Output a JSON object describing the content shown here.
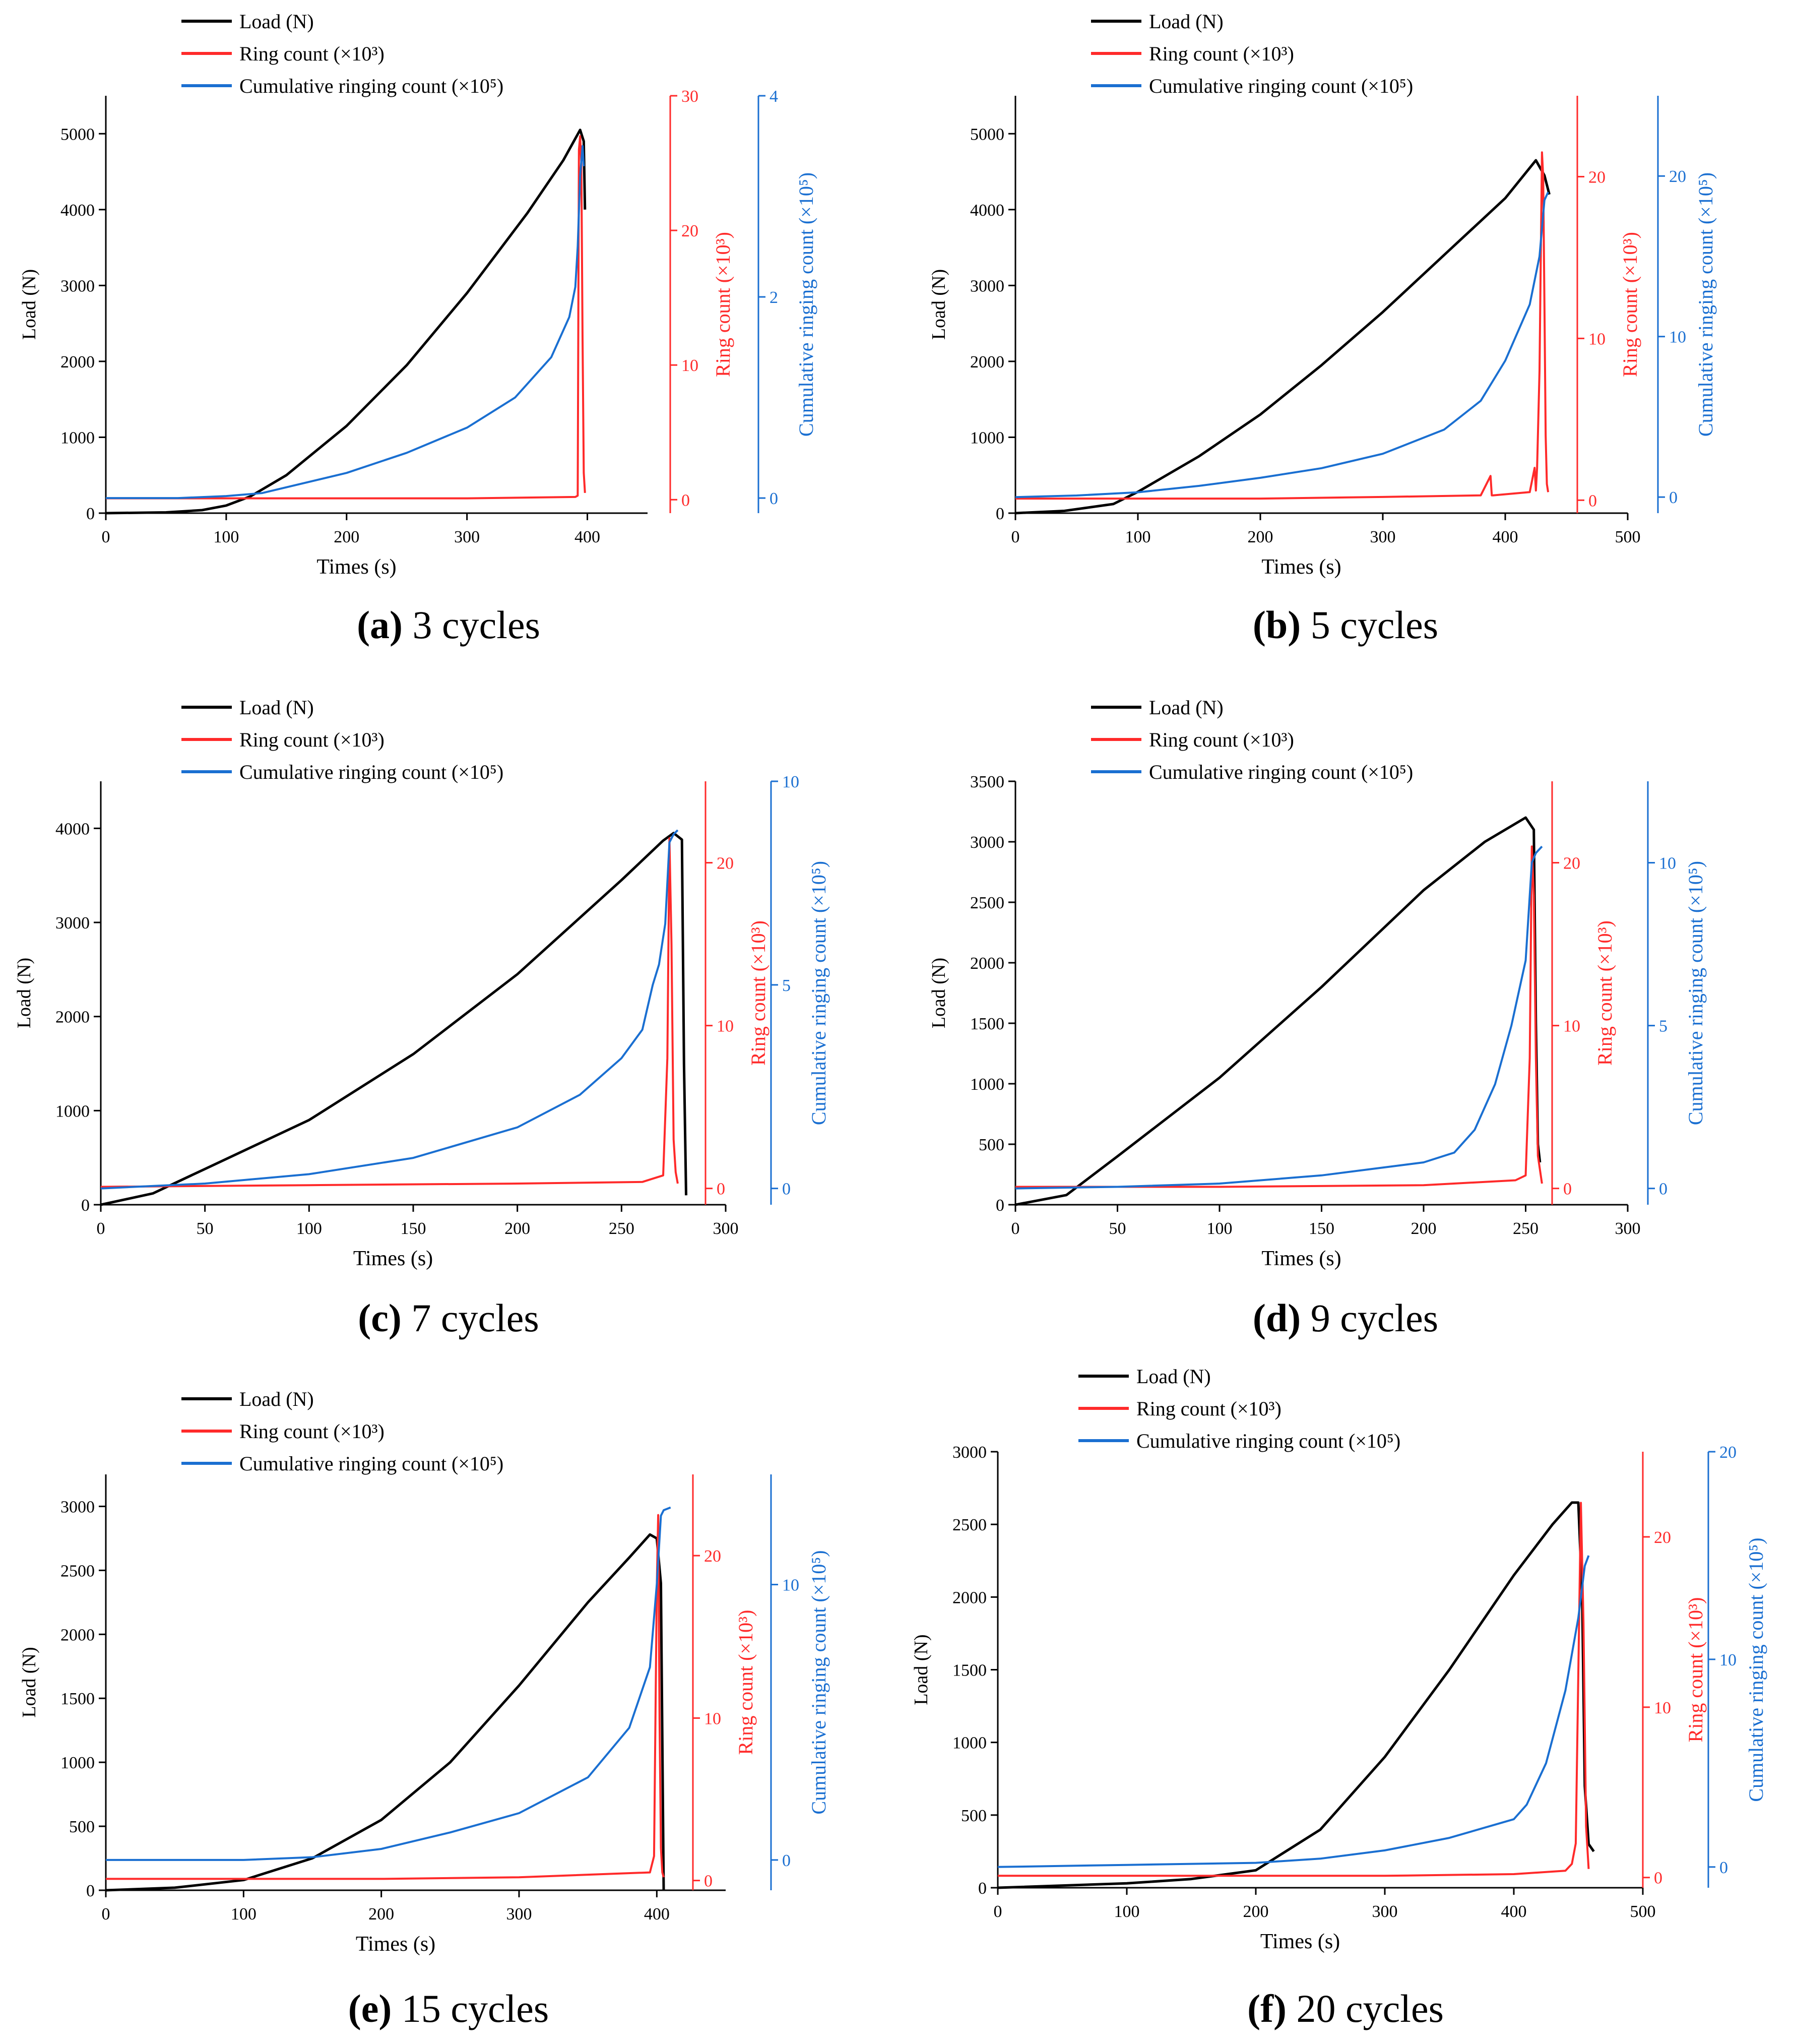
{
  "colors": {
    "load": "#000000",
    "ring": "#ff2a2a",
    "cumulative": "#1a6fd1",
    "axis": "#000000"
  },
  "chart_data": [
    {
      "type": "line",
      "title": "3 cycles",
      "letter": "a",
      "xlabel": "Times (s)",
      "xlim": [
        0,
        450
      ],
      "xticks": [
        0,
        100,
        200,
        300,
        400
      ],
      "ylabel_left": "Load (N)",
      "ylim_left": [
        0,
        5500
      ],
      "yticks_left": [
        0,
        1000,
        2000,
        3000,
        4000,
        5000
      ],
      "ylabel_ring": "Ring count (×10³)",
      "ylim_ring": [
        -1,
        30
      ],
      "yticks_ring": [
        0,
        10,
        20,
        30
      ],
      "ylabel_cum": "Cumulative ringing count (×10⁵)",
      "ylim_cum": [
        -0.15,
        4
      ],
      "yticks_cum": [
        0,
        2,
        4
      ],
      "legend": [
        "Load (N)",
        "Ring count (×10³)",
        "Cumulative ringing count (×10⁵)"
      ],
      "legend_position": "top",
      "series": [
        {
          "name": "Load (N)",
          "x": [
            0,
            50,
            80,
            100,
            120,
            150,
            200,
            250,
            300,
            350,
            380,
            394,
            397,
            398
          ],
          "y": [
            0,
            10,
            40,
            100,
            220,
            500,
            1150,
            1950,
            2900,
            3950,
            4650,
            5050,
            4900,
            4000
          ]
        },
        {
          "name": "Ring count (×10³)",
          "x": [
            0,
            100,
            200,
            300,
            390,
            392,
            393,
            394,
            395,
            396,
            397,
            398
          ],
          "y": [
            0.1,
            0.1,
            0.1,
            0.1,
            0.2,
            0.3,
            26,
            27,
            25,
            12,
            2,
            0.5
          ]
        },
        {
          "name": "Cumulative ringing count (×10⁵)",
          "x": [
            0,
            60,
            100,
            130,
            200,
            250,
            300,
            340,
            370,
            385,
            390,
            392,
            394,
            396,
            397
          ],
          "y": [
            0,
            0,
            0.02,
            0.05,
            0.25,
            0.45,
            0.7,
            1.0,
            1.4,
            1.8,
            2.1,
            2.5,
            3.2,
            3.5,
            3.3
          ]
        }
      ]
    },
    {
      "type": "line",
      "title": "5 cycles",
      "letter": "b",
      "xlabel": "Times (s)",
      "xlim": [
        0,
        500
      ],
      "xticks": [
        0,
        100,
        200,
        300,
        400,
        500
      ],
      "ylabel_left": "Load (N)",
      "ylim_left": [
        0,
        5500
      ],
      "yticks_left": [
        0,
        1000,
        2000,
        3000,
        4000,
        5000
      ],
      "ylabel_ring": "Ring count (×10³)",
      "ylim_ring": [
        -0.8,
        25
      ],
      "yticks_ring": [
        0,
        10,
        20
      ],
      "ylabel_cum": "Cumulative ringing count (×10⁵)",
      "ylim_cum": [
        -1,
        25
      ],
      "yticks_cum": [
        0,
        10,
        20
      ],
      "legend": [
        "Load (N)",
        "Ring count (×10³)",
        "Cumulative ringing count (×10⁵)"
      ],
      "legend_position": "top",
      "series": [
        {
          "name": "Load (N)",
          "x": [
            0,
            40,
            80,
            100,
            150,
            200,
            250,
            300,
            350,
            400,
            425,
            432,
            436
          ],
          "y": [
            0,
            30,
            120,
            280,
            750,
            1300,
            1950,
            2650,
            3400,
            4150,
            4650,
            4450,
            4200
          ]
        },
        {
          "name": "Ring count (×10³)",
          "x": [
            0,
            100,
            200,
            300,
            380,
            388,
            389,
            390,
            420,
            424,
            425,
            426,
            428,
            429,
            430,
            431,
            432,
            433,
            434,
            435
          ],
          "y": [
            0.1,
            0.1,
            0.1,
            0.2,
            0.3,
            1.5,
            0.3,
            0.3,
            0.5,
            2.0,
            0.6,
            2.0,
            8,
            15,
            21.5,
            20,
            12,
            4,
            1,
            0.5
          ]
        },
        {
          "name": "Cumulative ringing count (×10⁵)",
          "x": [
            0,
            50,
            100,
            150,
            200,
            250,
            300,
            350,
            380,
            400,
            420,
            428,
            432,
            435
          ],
          "y": [
            0,
            0.1,
            0.3,
            0.7,
            1.2,
            1.8,
            2.7,
            4.2,
            6.0,
            8.5,
            12,
            15,
            18.5,
            19
          ]
        }
      ]
    },
    {
      "type": "line",
      "title": "7 cycles",
      "letter": "c",
      "xlabel": "Times (s)",
      "xlim": [
        0,
        300
      ],
      "xticks": [
        0,
        50,
        100,
        150,
        200,
        250,
        300
      ],
      "ylabel_left": "Load (N)",
      "ylim_left": [
        0,
        4500
      ],
      "yticks_left": [
        0,
        1000,
        2000,
        3000,
        4000
      ],
      "ylabel_ring": "Ring count (×10³)",
      "ylim_ring": [
        -1,
        25
      ],
      "yticks_ring": [
        0,
        10,
        20
      ],
      "ylabel_cum": "Cumulative ringing count (×10⁵)",
      "ylim_cum": [
        -0.4,
        10
      ],
      "yticks_cum": [
        0,
        5,
        10
      ],
      "legend": [
        "Load (N)",
        "Ring count (×10³)",
        "Cumulative ringing count (×10⁵)"
      ],
      "legend_position": "top",
      "series": [
        {
          "name": "Load (N)",
          "x": [
            0,
            25,
            50,
            100,
            150,
            200,
            250,
            270,
            275,
            279,
            280,
            281
          ],
          "y": [
            0,
            120,
            380,
            900,
            1600,
            2450,
            3450,
            3870,
            3950,
            3880,
            1500,
            100
          ]
        },
        {
          "name": "Ring count (×10³)",
          "x": [
            0,
            100,
            200,
            260,
            265,
            270,
            272,
            273,
            274,
            275,
            276,
            277
          ],
          "y": [
            0.1,
            0.2,
            0.3,
            0.4,
            0.6,
            0.8,
            8,
            21.5,
            15,
            3,
            1,
            0.3
          ]
        },
        {
          "name": "Cumulative ringing count (×10⁵)",
          "x": [
            0,
            50,
            100,
            150,
            200,
            230,
            250,
            260,
            265,
            268,
            271,
            273,
            275,
            277
          ],
          "y": [
            0,
            0.12,
            0.35,
            0.75,
            1.5,
            2.3,
            3.2,
            3.9,
            5,
            5.5,
            6.5,
            8.5,
            8.7,
            8.8
          ]
        }
      ]
    },
    {
      "type": "line",
      "title": "9 cycles",
      "letter": "d",
      "xlabel": "Times (s)",
      "xlim": [
        0,
        300
      ],
      "xticks": [
        0,
        50,
        100,
        150,
        200,
        250,
        300
      ],
      "ylabel_left": "Load (N)",
      "ylim_left": [
        0,
        3500
      ],
      "yticks_left": [
        0,
        500,
        1000,
        1500,
        2000,
        2500,
        3000,
        3500
      ],
      "ylabel_ring": "Ring count (×10³)",
      "ylim_ring": [
        -1,
        25
      ],
      "yticks_ring": [
        0,
        10,
        20
      ],
      "ylabel_cum": "Cumulative ringing count (×10⁵)",
      "ylim_cum": [
        -0.5,
        12.5
      ],
      "yticks_cum": [
        0,
        5,
        10
      ],
      "legend": [
        "Load (N)",
        "Ring count (×10³)",
        "Cumulative ringing count (×10⁵)"
      ],
      "legend_position": "top",
      "series": [
        {
          "name": "Load (N)",
          "x": [
            0,
            25,
            50,
            100,
            150,
            200,
            230,
            250,
            254,
            255,
            256,
            257
          ],
          "y": [
            0,
            80,
            400,
            1050,
            1800,
            2600,
            3000,
            3200,
            3100,
            1500,
            500,
            350
          ]
        },
        {
          "name": "Ring count (×10³)",
          "x": [
            0,
            100,
            200,
            245,
            250,
            252,
            253,
            254,
            255,
            256,
            258
          ],
          "y": [
            0.1,
            0.1,
            0.2,
            0.5,
            0.8,
            8,
            21,
            18,
            8,
            2,
            0.3
          ]
        },
        {
          "name": "Cumulative ringing count (×10⁵)",
          "x": [
            0,
            50,
            100,
            150,
            200,
            215,
            225,
            235,
            243,
            250,
            253,
            255,
            258
          ],
          "y": [
            0,
            0.05,
            0.15,
            0.4,
            0.8,
            1.1,
            1.8,
            3.2,
            5,
            7,
            10,
            10.3,
            10.5
          ]
        }
      ]
    },
    {
      "type": "line",
      "title": "15 cycles",
      "letter": "e",
      "xlabel": "Times (s)",
      "xlim": [
        0,
        450
      ],
      "xticks": [
        0,
        100,
        200,
        300,
        400
      ],
      "ylabel_left": "Load (N)",
      "ylim_left": [
        0,
        3250
      ],
      "yticks_left": [
        0,
        500,
        1000,
        1500,
        2000,
        2500,
        3000
      ],
      "ylabel_ring": "Ring count (×10³)",
      "ylim_ring": [
        -0.6,
        25
      ],
      "yticks_ring": [
        0,
        10,
        20
      ],
      "ylabel_cum": "Cumulative ringing count (×10⁵)",
      "ylim_cum": [
        -1.1,
        14
      ],
      "yticks_cum": [
        0,
        10
      ],
      "legend": [
        "Load (N)",
        "Ring count (×10³)",
        "Cumulative ringing count (×10⁵)"
      ],
      "legend_position": "top",
      "series": [
        {
          "name": "Load (N)",
          "x": [
            0,
            50,
            100,
            150,
            200,
            250,
            300,
            350,
            380,
            395,
            400,
            403,
            405
          ],
          "y": [
            0,
            20,
            80,
            250,
            550,
            1000,
            1600,
            2250,
            2600,
            2780,
            2750,
            2400,
            0
          ]
        },
        {
          "name": "Ring count (×10³)",
          "x": [
            0,
            100,
            200,
            300,
            395,
            398,
            400,
            401,
            402,
            403,
            404,
            405
          ],
          "y": [
            0.1,
            0.1,
            0.1,
            0.2,
            0.5,
            1.5,
            18,
            22.5,
            10,
            2,
            0.5,
            0.2
          ]
        },
        {
          "name": "Cumulative ringing count (×10⁵)",
          "x": [
            0,
            100,
            150,
            200,
            250,
            300,
            350,
            380,
            395,
            400,
            403,
            405,
            410
          ],
          "y": [
            0,
            0,
            0.1,
            0.4,
            1.0,
            1.7,
            3.0,
            4.8,
            7,
            10,
            12.5,
            12.7,
            12.8
          ]
        }
      ]
    },
    {
      "type": "line",
      "title": "20 cycles",
      "letter": "f",
      "xlabel": "Times (s)",
      "xlim": [
        0,
        500
      ],
      "xticks": [
        0,
        100,
        200,
        300,
        400,
        500
      ],
      "ylabel_left": "Load (N)",
      "ylim_left": [
        0,
        3000
      ],
      "yticks_left": [
        0,
        500,
        1000,
        1500,
        2000,
        2500,
        3000
      ],
      "ylabel_ring": "Ring count (×10³)",
      "ylim_ring": [
        -0.6,
        25
      ],
      "yticks_ring": [
        0,
        10,
        20
      ],
      "ylabel_cum": "Cumulative ringing count (×10⁵)",
      "ylim_cum": [
        -1,
        20
      ],
      "yticks_cum": [
        0,
        10,
        20
      ],
      "legend": [
        "Load (N)",
        "Ring count (×10³)",
        "Cumulative ringing count (×10⁵)"
      ],
      "legend_position": "top",
      "series": [
        {
          "name": "Load (N)",
          "x": [
            0,
            100,
            150,
            200,
            250,
            300,
            350,
            400,
            430,
            445,
            450,
            453,
            455,
            458,
            462
          ],
          "y": [
            0,
            30,
            60,
            120,
            400,
            900,
            1500,
            2150,
            2500,
            2650,
            2650,
            2000,
            700,
            300,
            250
          ]
        },
        {
          "name": "Ring count (×10³)",
          "x": [
            0,
            100,
            200,
            300,
            400,
            440,
            445,
            448,
            450,
            452,
            454,
            456,
            458
          ],
          "y": [
            0.1,
            0.1,
            0.1,
            0.1,
            0.2,
            0.4,
            0.8,
            2,
            12,
            22,
            15,
            3,
            0.5
          ]
        },
        {
          "name": "Cumulative ringing count (×10⁵)",
          "x": [
            0,
            100,
            200,
            250,
            300,
            350,
            400,
            410,
            425,
            440,
            450,
            455,
            458
          ],
          "y": [
            0,
            0.1,
            0.2,
            0.4,
            0.8,
            1.4,
            2.3,
            3.0,
            5.0,
            8.5,
            12,
            14.5,
            15
          ]
        }
      ]
    }
  ]
}
